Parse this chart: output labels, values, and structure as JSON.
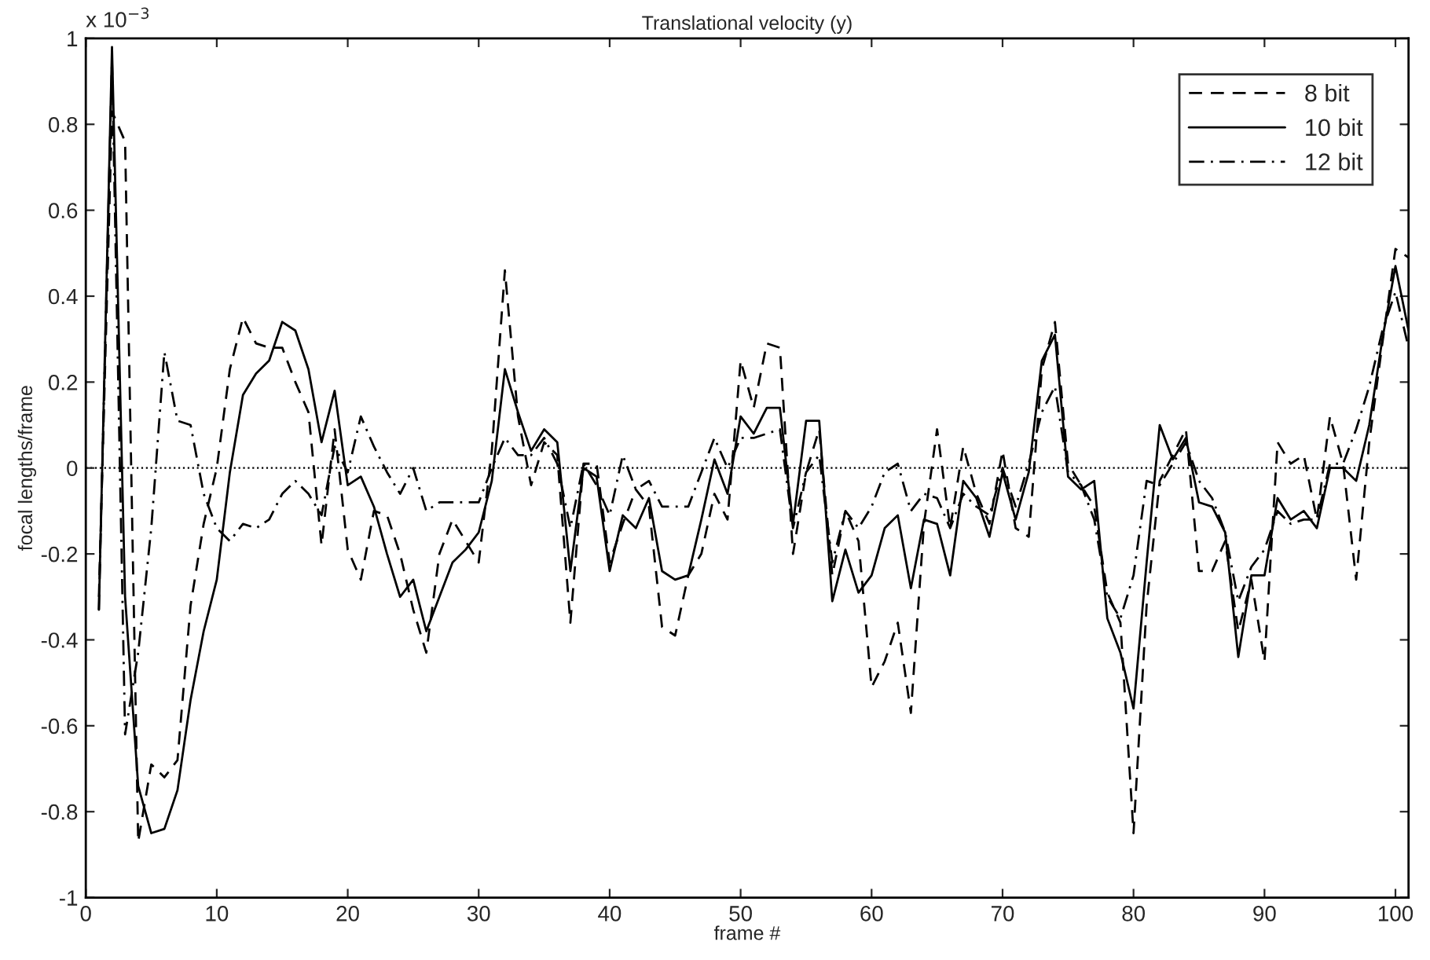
{
  "chart_data": {
    "type": "line",
    "title": "Translational velocity (y)",
    "xlabel": "frame #",
    "ylabel": "focal lengths/frame",
    "annotations": [
      "x 10$^{−3}$"
    ],
    "x": [
      1,
      2,
      3,
      4,
      5,
      6,
      7,
      8,
      9,
      10,
      11,
      12,
      13,
      14,
      15,
      16,
      17,
      18,
      19,
      20,
      21,
      22,
      23,
      24,
      25,
      26,
      27,
      28,
      29,
      30,
      31,
      32,
      33,
      34,
      35,
      36,
      37,
      38,
      39,
      40,
      41,
      42,
      43,
      44,
      45,
      46,
      47,
      48,
      49,
      50,
      51,
      52,
      53,
      54,
      55,
      56,
      57,
      58,
      59,
      60,
      61,
      62,
      63,
      64,
      65,
      66,
      67,
      68,
      69,
      70,
      71,
      72,
      73,
      74,
      75,
      76,
      77,
      78,
      79,
      80,
      81,
      82,
      83,
      84,
      85,
      86,
      87,
      88,
      89,
      90,
      91,
      92,
      93,
      94,
      95,
      96,
      97,
      98,
      99,
      100,
      101
    ],
    "series": [
      {
        "name": "8 bit",
        "color": "#000000",
        "line_style": "dashed",
        "values": [
          -0.3,
          0.83,
          0.76,
          -0.87,
          -0.69,
          -0.72,
          -0.68,
          -0.32,
          -0.13,
          0.0,
          0.23,
          0.35,
          0.29,
          0.28,
          0.28,
          0.2,
          0.13,
          -0.18,
          0.09,
          -0.19,
          -0.26,
          -0.1,
          -0.11,
          -0.2,
          -0.33,
          -0.43,
          -0.2,
          -0.12,
          -0.17,
          -0.22,
          0.04,
          0.46,
          0.12,
          -0.04,
          0.06,
          0.03,
          -0.36,
          0.01,
          0.01,
          -0.22,
          -0.13,
          -0.05,
          -0.09,
          -0.37,
          -0.39,
          -0.25,
          -0.2,
          -0.06,
          -0.12,
          0.25,
          0.14,
          0.29,
          0.28,
          -0.2,
          -0.01,
          0.09,
          -0.25,
          -0.1,
          -0.17,
          -0.51,
          -0.45,
          -0.36,
          -0.57,
          -0.13,
          0.09,
          -0.14,
          0.05,
          -0.06,
          -0.13,
          0.04,
          -0.14,
          -0.16,
          0.23,
          0.34,
          0.01,
          -0.04,
          -0.09,
          -0.29,
          -0.36,
          -0.85,
          -0.32,
          -0.03,
          0.03,
          0.09,
          -0.24,
          -0.24,
          -0.17,
          -0.38,
          -0.26,
          -0.45,
          0.06,
          0.01,
          0.03,
          -0.12,
          0.12,
          0.01,
          -0.26,
          0.06,
          0.29,
          0.51,
          0.49
        ]
      },
      {
        "name": "10 bit",
        "color": "#000000",
        "line_style": "solid",
        "values": [
          -0.33,
          0.98,
          -0.3,
          -0.74,
          -0.85,
          -0.84,
          -0.75,
          -0.54,
          -0.38,
          -0.26,
          -0.01,
          0.17,
          0.22,
          0.25,
          0.34,
          0.32,
          0.23,
          0.06,
          0.18,
          -0.04,
          -0.02,
          -0.09,
          -0.2,
          -0.3,
          -0.26,
          -0.38,
          -0.3,
          -0.22,
          -0.19,
          -0.15,
          -0.03,
          0.23,
          0.13,
          0.04,
          0.09,
          0.06,
          -0.24,
          0.0,
          -0.02,
          -0.24,
          -0.11,
          -0.14,
          -0.07,
          -0.24,
          -0.26,
          -0.25,
          -0.12,
          0.02,
          -0.06,
          0.12,
          0.08,
          0.14,
          0.14,
          -0.13,
          0.11,
          0.11,
          -0.31,
          -0.19,
          -0.29,
          -0.25,
          -0.14,
          -0.11,
          -0.28,
          -0.12,
          -0.13,
          -0.25,
          -0.03,
          -0.07,
          -0.16,
          -0.01,
          -0.12,
          -0.01,
          0.25,
          0.31,
          -0.02,
          -0.05,
          -0.03,
          -0.35,
          -0.43,
          -0.56,
          -0.22,
          0.1,
          0.02,
          0.07,
          -0.08,
          -0.09,
          -0.15,
          -0.44,
          -0.25,
          -0.25,
          -0.07,
          -0.12,
          -0.1,
          -0.14,
          0.0,
          0.0,
          -0.03,
          0.1,
          0.3,
          0.47,
          0.32
        ]
      },
      {
        "name": "12 bit",
        "color": "#000000",
        "line_style": "dashdot",
        "values": [
          -0.33,
          0.95,
          -0.62,
          -0.43,
          -0.14,
          0.27,
          0.11,
          0.1,
          -0.06,
          -0.14,
          -0.17,
          -0.13,
          -0.14,
          -0.12,
          -0.06,
          -0.03,
          -0.06,
          -0.11,
          0.05,
          -0.01,
          0.12,
          0.05,
          -0.01,
          -0.06,
          0.0,
          -0.1,
          -0.08,
          -0.08,
          -0.08,
          -0.08,
          0.0,
          0.07,
          0.03,
          0.03,
          0.07,
          0.01,
          -0.14,
          0.01,
          -0.04,
          -0.11,
          0.03,
          -0.05,
          -0.03,
          -0.09,
          -0.09,
          -0.09,
          -0.01,
          0.07,
          0.0,
          0.07,
          0.07,
          0.08,
          0.09,
          -0.14,
          -0.01,
          0.03,
          -0.22,
          -0.1,
          -0.14,
          -0.09,
          -0.01,
          0.01,
          -0.1,
          -0.06,
          -0.07,
          -0.14,
          -0.06,
          -0.09,
          -0.11,
          0.0,
          -0.09,
          0.01,
          0.13,
          0.19,
          -0.01,
          -0.04,
          -0.12,
          -0.3,
          -0.35,
          -0.25,
          -0.03,
          -0.04,
          0.01,
          0.06,
          -0.03,
          -0.07,
          -0.15,
          -0.31,
          -0.23,
          -0.19,
          -0.1,
          -0.13,
          -0.12,
          -0.12,
          0.01,
          0.01,
          0.09,
          0.19,
          0.32,
          0.41,
          0.28
        ]
      }
    ],
    "xlim": [
      0,
      101
    ],
    "xticks": [
      0,
      10,
      20,
      30,
      40,
      50,
      60,
      70,
      80,
      90,
      100
    ],
    "ylim": [
      -1,
      1
    ],
    "yticks": [
      -1,
      -0.8,
      -0.6,
      -0.4,
      -0.2,
      0,
      0.2,
      0.4,
      0.6,
      0.8,
      1
    ],
    "ref_lines": [
      {
        "axis": "y",
        "value": 0,
        "color": "#000000",
        "line_style": "dotted"
      }
    ],
    "grid": false,
    "legend": "top right",
    "marker": "none"
  }
}
